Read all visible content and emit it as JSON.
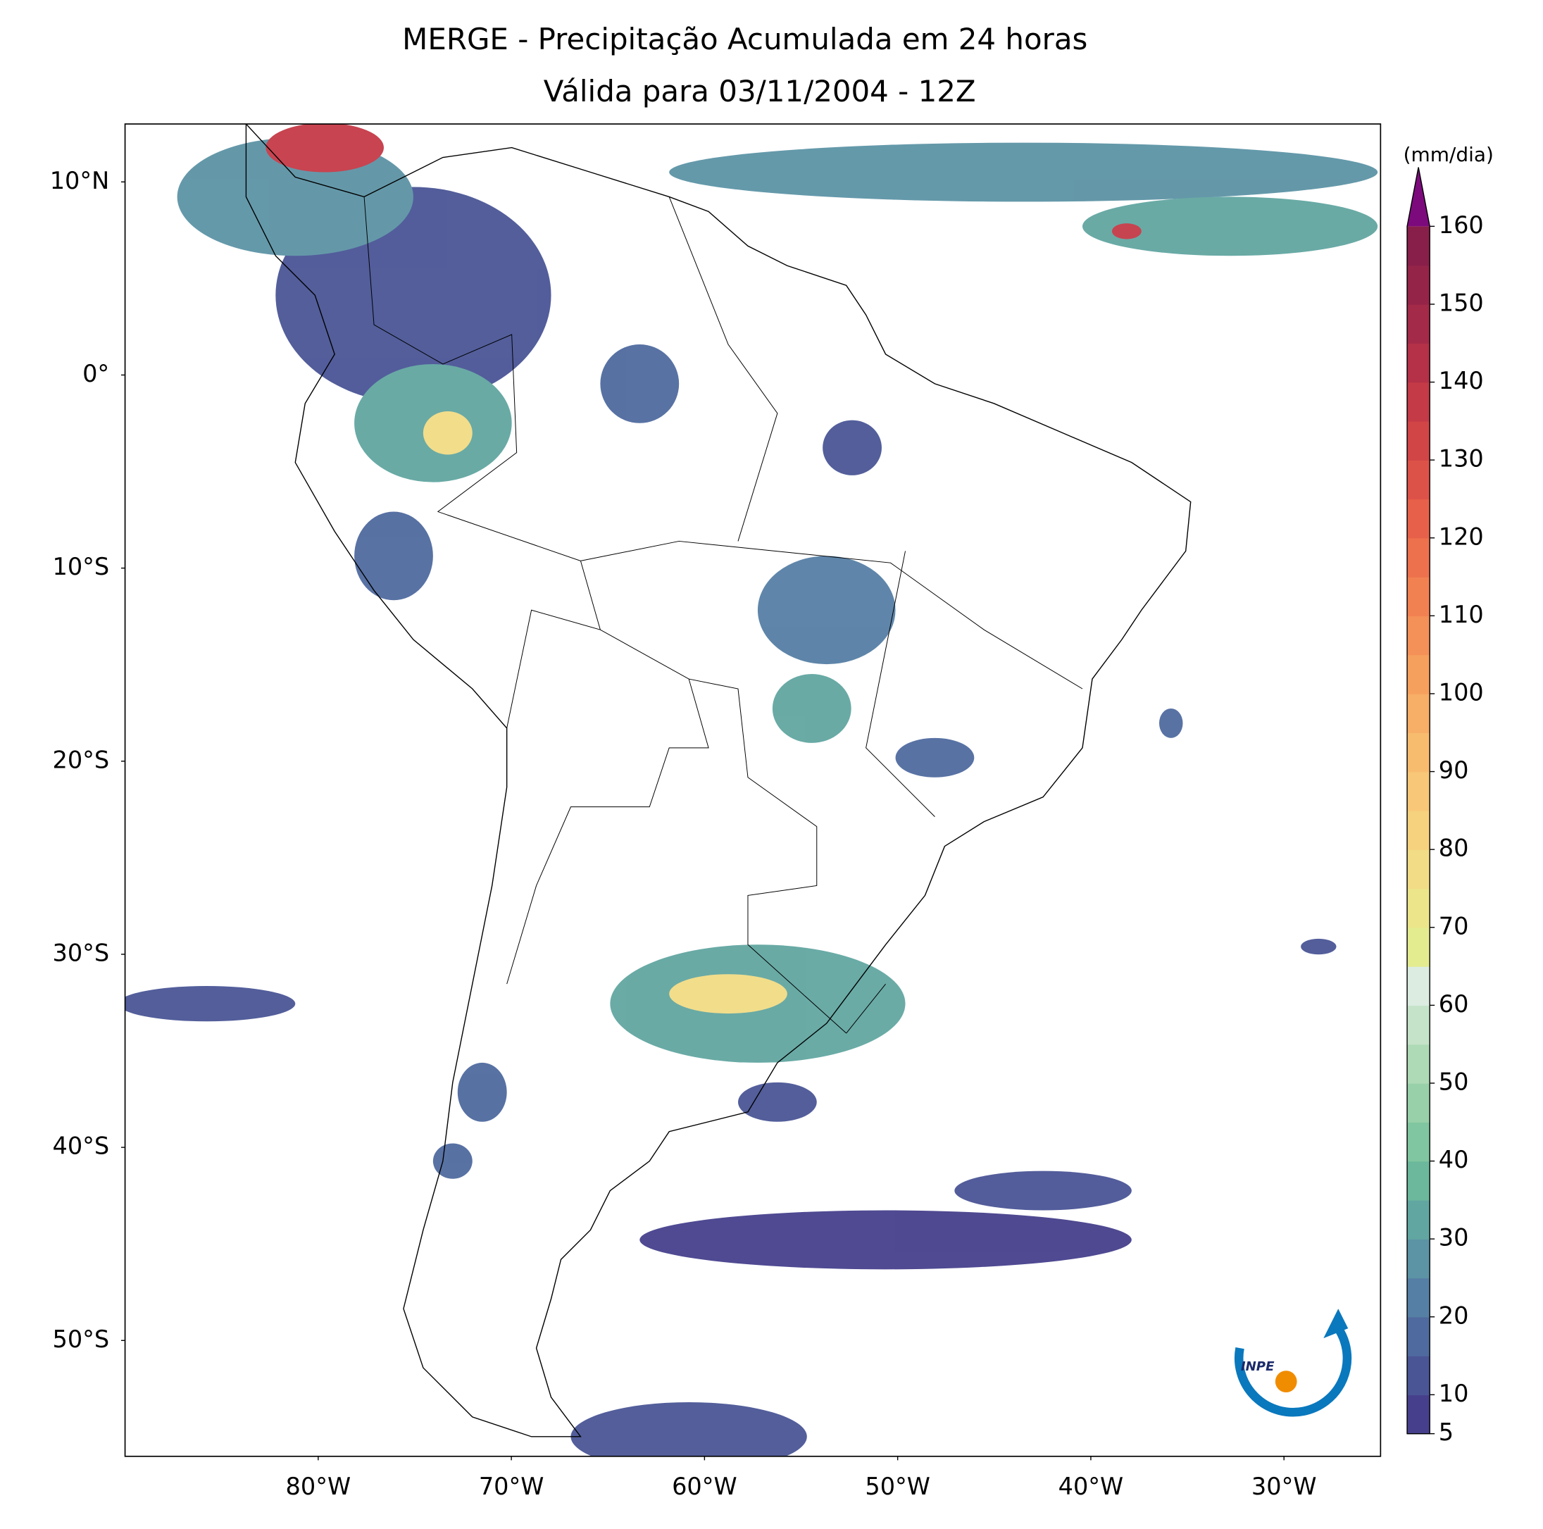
{
  "map": {
    "title": [
      "MERGE - Precipitação Acumulada em 24 horas",
      "Válida para 03/11/2004 - 12Z"
    ],
    "xlim": [
      -90,
      -25
    ],
    "ylim": [
      -56,
      13
    ],
    "xticks": [
      {
        "value": -80,
        "label": "80°W"
      },
      {
        "value": -70,
        "label": "70°W"
      },
      {
        "value": -60,
        "label": "60°W"
      },
      {
        "value": -50,
        "label": "50°W"
      },
      {
        "value": -40,
        "label": "40°W"
      },
      {
        "value": -30,
        "label": "30°W"
      }
    ],
    "yticks": [
      {
        "value": 10,
        "label": "10°N"
      },
      {
        "value": 0,
        "label": "0°"
      },
      {
        "value": -10,
        "label": "10°S"
      },
      {
        "value": -20,
        "label": "20°S"
      },
      {
        "value": -30,
        "label": "30°S"
      },
      {
        "value": -40,
        "label": "40°S"
      },
      {
        "value": -50,
        "label": "50°S"
      }
    ]
  },
  "colorbar": {
    "label": "(mm/dia)",
    "lim": [
      5,
      160
    ],
    "ticks": [
      5,
      10,
      20,
      30,
      40,
      50,
      60,
      70,
      80,
      90,
      100,
      110,
      120,
      130,
      140,
      150,
      160
    ],
    "colors": [
      "#46408c",
      "#4a5596",
      "#4f6a9f",
      "#567fa5",
      "#5c93a5",
      "#62a6a1",
      "#6cb89c",
      "#80c6a0",
      "#97d0a9",
      "#aedab6",
      "#c5e3c8",
      "#dcece1",
      "#e4ec90",
      "#ece58a",
      "#f2dc85",
      "#f6d27e",
      "#f8c778",
      "#f8bc6f",
      "#f7ae66",
      "#f6a05e",
      "#f49158",
      "#f28152",
      "#ee714d",
      "#e7614a",
      "#dd5248",
      "#d14547",
      "#c43a47",
      "#b43147",
      "#a42a49",
      "#952449",
      "#881f4a"
    ],
    "extend_color": "#7d0a7d"
  },
  "logo_text": "INPE"
}
